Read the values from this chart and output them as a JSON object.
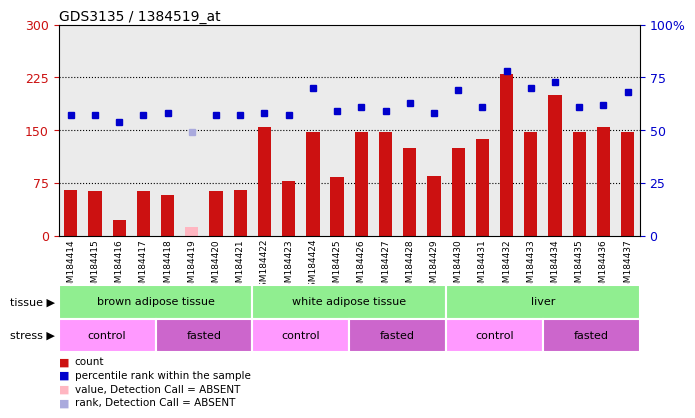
{
  "title": "GDS3135 / 1384519_at",
  "samples": [
    "GSM184414",
    "GSM184415",
    "GSM184416",
    "GSM184417",
    "GSM184418",
    "GSM184419",
    "GSM184420",
    "GSM184421",
    "GSM184422",
    "GSM184423",
    "GSM184424",
    "GSM184425",
    "GSM184426",
    "GSM184427",
    "GSM184428",
    "GSM184429",
    "GSM184430",
    "GSM184431",
    "GSM184432",
    "GSM184433",
    "GSM184434",
    "GSM184435",
    "GSM184436",
    "GSM184437"
  ],
  "counts": [
    65,
    63,
    22,
    63,
    58,
    null,
    63,
    65,
    155,
    78,
    148,
    83,
    148,
    148,
    125,
    85,
    125,
    138,
    230,
    148,
    200,
    148,
    155,
    148
  ],
  "absent_counts": [
    null,
    null,
    null,
    null,
    null,
    12,
    null,
    null,
    null,
    null,
    null,
    null,
    null,
    null,
    null,
    null,
    null,
    null,
    null,
    null,
    null,
    null,
    null,
    null
  ],
  "ranks": [
    57,
    57,
    54,
    57,
    58,
    null,
    57,
    57,
    58,
    57,
    70,
    59,
    61,
    59,
    63,
    58,
    69,
    61,
    78,
    70,
    73,
    61,
    62,
    68
  ],
  "absent_ranks": [
    null,
    null,
    null,
    null,
    null,
    49,
    null,
    null,
    null,
    null,
    null,
    null,
    null,
    null,
    null,
    null,
    null,
    null,
    null,
    null,
    null,
    null,
    null,
    null
  ],
  "tissue_groups": [
    {
      "label": "brown adipose tissue",
      "start": 0,
      "end": 8,
      "color": "#90EE90"
    },
    {
      "label": "white adipose tissue",
      "start": 8,
      "end": 16,
      "color": "#90EE90"
    },
    {
      "label": "liver",
      "start": 16,
      "end": 24,
      "color": "#90EE90"
    }
  ],
  "stress_groups": [
    {
      "label": "control",
      "start": 0,
      "end": 4,
      "color": "#FF99FF"
    },
    {
      "label": "fasted",
      "start": 4,
      "end": 8,
      "color": "#CC66CC"
    },
    {
      "label": "control",
      "start": 8,
      "end": 12,
      "color": "#FF99FF"
    },
    {
      "label": "fasted",
      "start": 12,
      "end": 16,
      "color": "#CC66CC"
    },
    {
      "label": "control",
      "start": 16,
      "end": 20,
      "color": "#FF99FF"
    },
    {
      "label": "fasted",
      "start": 20,
      "end": 24,
      "color": "#CC66CC"
    }
  ],
  "ylim_left": [
    0,
    300
  ],
  "yticks_left": [
    0,
    75,
    150,
    225,
    300
  ],
  "ylim_right": [
    0,
    100
  ],
  "yticks_right": [
    0,
    25,
    50,
    75,
    100
  ],
  "bar_color": "#CC1111",
  "absent_bar_color": "#FFB6C1",
  "rank_color": "#0000CC",
  "absent_rank_color": "#AAAADD"
}
